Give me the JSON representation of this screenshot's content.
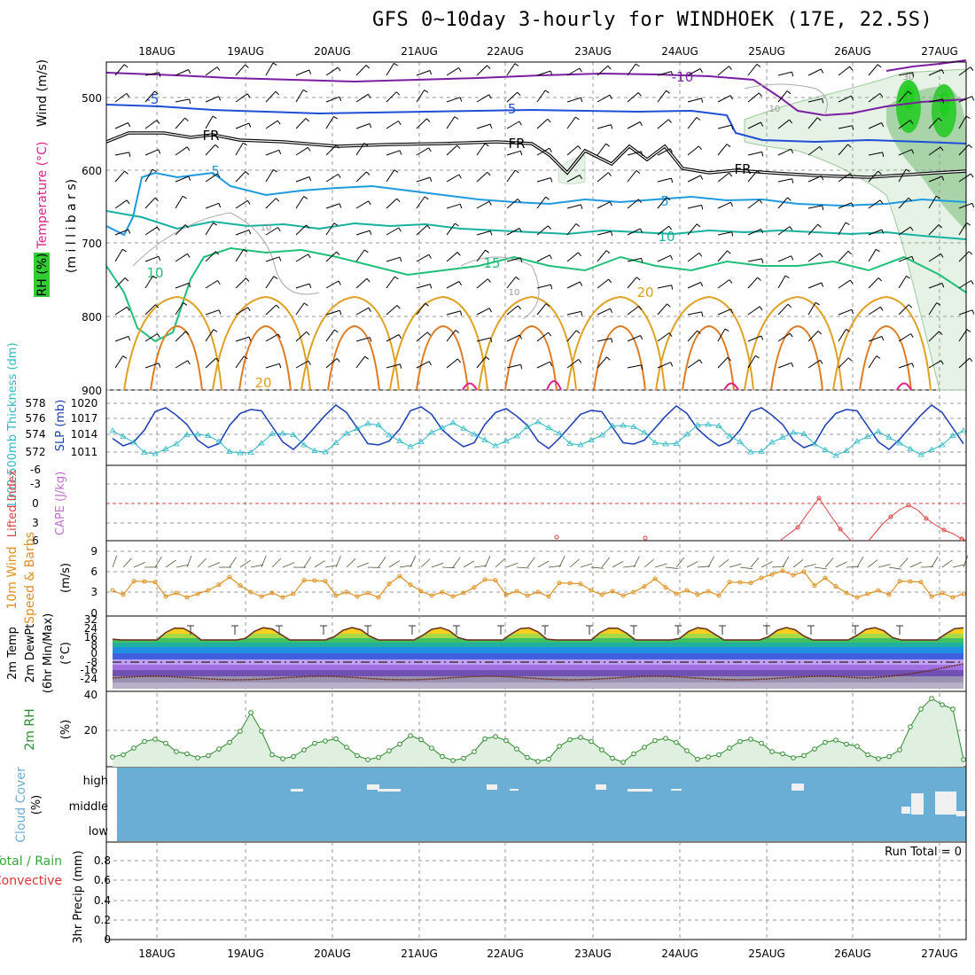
{
  "title": "GFS 0~10day 3-hourly for WINDHOEK (17E, 22.5S)",
  "dates": [
    "18AUG",
    "19AUG",
    "20AUG",
    "21AUG",
    "22AUG",
    "23AUG",
    "24AUG",
    "25AUG",
    "26AUG",
    "27AUG"
  ],
  "colors": {
    "grid": "#999999",
    "rh_green": "#33cc33",
    "temp_purple": "#7b1fa2",
    "temp_blue": "#1e4fd6",
    "temp_sky": "#1e9be0",
    "temp_teal": "#18b0a0",
    "temp_green": "#1fbf77",
    "temp_gold": "#e0a020",
    "temp_orange": "#e07a20",
    "temp_magenta": "#e0208a",
    "slp": "#1a3fb5",
    "thickness": "#2cb8c8",
    "lifted": "#e04040",
    "cape": "#c070d0",
    "wind": "#e09020",
    "rh2m": "#2e8b2e",
    "cloud": "#6aaed6",
    "precip_total": "#33aa33",
    "precip_conv": "#dd3333"
  },
  "panels": {
    "upper": {
      "label_wind": "Wind (m/s)",
      "label_temp": "Temperature (°C)",
      "label_rh": "RH (%)",
      "ylabel": "(m i l l i b a r s)",
      "ticks": [
        "500",
        "600",
        "700",
        "800",
        "900"
      ],
      "contour_labels": [
        {
          "text": "-10",
          "color": "temp_purple"
        },
        {
          "text": "-5",
          "color": "temp_blue"
        },
        {
          "text": "-5",
          "color": "temp_blue"
        },
        {
          "text": "FR",
          "color": "black"
        },
        {
          "text": "FR",
          "color": "black"
        },
        {
          "text": "FR",
          "color": "black"
        },
        {
          "text": "5",
          "color": "temp_sky"
        },
        {
          "text": "5",
          "color": "temp_sky"
        },
        {
          "text": "10",
          "color": "temp_teal"
        },
        {
          "text": "10",
          "color": "temp_green"
        },
        {
          "text": "15",
          "color": "temp_green"
        },
        {
          "text": "20",
          "color": "temp_gold"
        },
        {
          "text": "20",
          "color": "temp_gold"
        },
        {
          "text": "10",
          "color": "grid"
        },
        {
          "text": "10",
          "color": "grid"
        },
        {
          "text": "10",
          "color": "grid"
        },
        {
          "text": "30",
          "color": "grid"
        }
      ]
    },
    "slp": {
      "label_thick": "1000-500mb Thickness (dm)",
      "label_slp": "SLP (mb)",
      "ticks_thick": [
        "578",
        "576",
        "574",
        "572"
      ],
      "ticks_slp": [
        "1020",
        "1017",
        "1014",
        "1011"
      ]
    },
    "cape": {
      "label_lifted": "Lifted Index",
      "label_cape": "CAPE (J/kg)",
      "ticks": [
        "-6",
        "-3",
        "0",
        "3",
        "6"
      ]
    },
    "wind": {
      "label_main": "10m Wind",
      "label_sub": "Speed & Barbs",
      "ylabel": "(m/s)",
      "ticks": [
        "9",
        "6",
        "3",
        "0"
      ]
    },
    "temp": {
      "label_1": "2m Temp",
      "label_2": "2m DewPt",
      "label_3": "(6hr Min/Max)",
      "ylabel": "(°C)",
      "ticks": [
        "32",
        "24",
        "16",
        "8",
        "0",
        "-8",
        "-16",
        "-24"
      ]
    },
    "rh": {
      "label": "2m RH",
      "ylabel": "(%)",
      "ticks": [
        "40",
        "20"
      ]
    },
    "cloud": {
      "label_main": "Cloud Cover",
      "ylabel": "(%)",
      "ticks": [
        "high",
        "middle",
        "low"
      ]
    },
    "precip": {
      "label_total": "Total / Rain",
      "label_conv": "Convective",
      "ylabel": "3hr Precip (mm)",
      "ticks": [
        "0.8",
        "0.6",
        "0.4",
        "0.2",
        "0"
      ],
      "run_total": "Run Total = 0"
    }
  },
  "chart_data": [
    {
      "type": "line",
      "name": "SLP / 1000-500mb Thickness",
      "x": [
        "18AUG",
        "19AUG",
        "20AUG",
        "21AUG",
        "22AUG",
        "23AUG",
        "24AUG",
        "25AUG",
        "26AUG",
        "27AUG"
      ],
      "series": [
        {
          "name": "SLP (mb)",
          "values": [
            1014,
            1019,
            1015,
            1019,
            1014,
            1019,
            1014,
            1018,
            1013,
            1015
          ]
        },
        {
          "name": "1000-500mb Thickness (dm)",
          "values": [
            573,
            574,
            574,
            575,
            577,
            575,
            576,
            576,
            572,
            572
          ]
        }
      ]
    },
    {
      "type": "line",
      "name": "10m Wind Speed",
      "x": [
        "18AUG",
        "19AUG",
        "20AUG",
        "21AUG",
        "22AUG",
        "23AUG",
        "24AUG",
        "25AUG",
        "26AUG",
        "27AUG"
      ],
      "series": [
        {
          "name": "Speed (m/s)",
          "values": [
            1,
            4,
            2,
            4,
            3,
            3,
            2,
            3,
            6,
            2
          ]
        }
      ],
      "ylim": [
        0,
        9
      ]
    },
    {
      "type": "area",
      "name": "2m RH",
      "x": [
        "18AUG",
        "19AUG",
        "20AUG",
        "21AUG",
        "22AUG",
        "23AUG",
        "24AUG",
        "25AUG",
        "26AUG",
        "27AUG"
      ],
      "series": [
        {
          "name": "2m RH (%)",
          "values": [
            18,
            28,
            13,
            14,
            13,
            14,
            20,
            16,
            18,
            36
          ]
        }
      ],
      "ylim": [
        0,
        40
      ]
    },
    {
      "type": "line",
      "name": "3hr Precip",
      "series": [
        {
          "name": "Total / Rain",
          "values": [
            0,
            0,
            0,
            0,
            0,
            0,
            0,
            0,
            0,
            0
          ]
        }
      ],
      "ylim": [
        0,
        0.9
      ]
    }
  ]
}
